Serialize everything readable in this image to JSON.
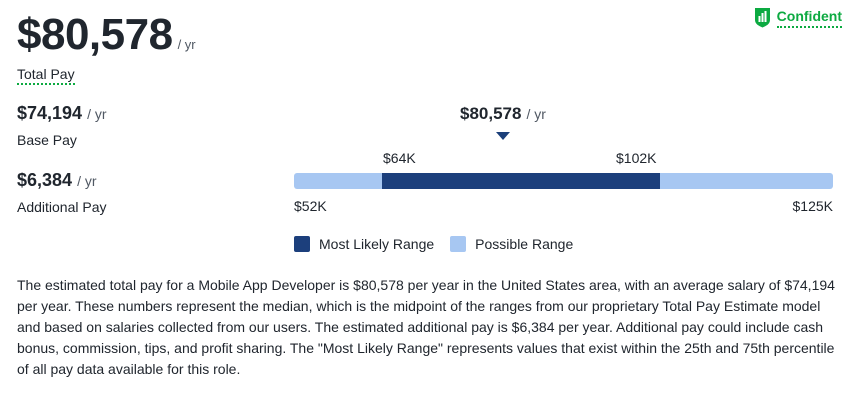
{
  "total": {
    "amount": "$80,578",
    "unit": "/ yr",
    "label": "Total Pay"
  },
  "confidence": {
    "label": "Confident",
    "icon": "shield-chart-icon",
    "color": "#0caa41"
  },
  "base_pay": {
    "amount": "$74,194",
    "unit": "/ yr",
    "label": "Base Pay"
  },
  "additional_pay": {
    "amount": "$6,384",
    "unit": "/ yr",
    "label": "Additional Pay"
  },
  "range": {
    "marker_amount": "$80,578",
    "marker_unit": "/ yr",
    "likely_low": "$64K",
    "likely_high": "$102K",
    "possible_low": "$52K",
    "possible_high": "$125K",
    "likely_color": "#1c3f7c",
    "possible_color": "#a7c7f2"
  },
  "legend": {
    "likely_label": "Most Likely Range",
    "possible_label": "Possible Range"
  },
  "description": "The estimated total pay for a Mobile App Developer is $80,578 per year in the United States area, with an average salary of $74,194 per year. These numbers represent the median, which is the midpoint of the ranges from our proprietary Total Pay Estimate model and based on salaries collected from our users. The estimated additional pay is $6,384 per year. Additional pay could include cash bonus, commission, tips, and profit sharing. The \"Most Likely Range\" represents values that exist within the 25th and 75th percentile of all pay data available for this role."
}
